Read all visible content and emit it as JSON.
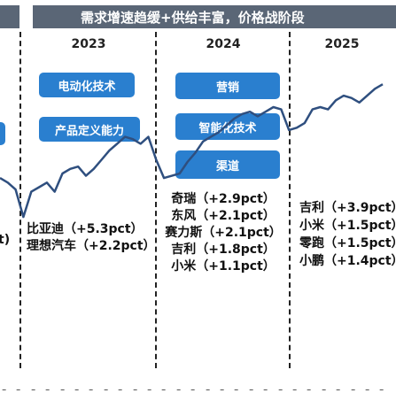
{
  "header": {
    "banner_title": "需求增速趋缓+供给丰富，价格战阶段"
  },
  "years": [
    "2023",
    "2024",
    "2025"
  ],
  "factors": {
    "y2023": [
      "电动化技术",
      "产品定义能力"
    ],
    "y2024": [
      "营销",
      "智能化技术",
      "渠道"
    ]
  },
  "annotations": {
    "left_partial": "t)",
    "y2023": [
      "比亚迪（+5.3pct）",
      "理想汽车（+2.2pct）"
    ],
    "y2024": [
      "奇瑞（+2.9pct）",
      "东风（+2.1pct）",
      "赛力斯（+2.1pct）",
      "吉利（+1.8pct）",
      "小米（+1.1pct）"
    ],
    "y2025": [
      "吉利（+3.9pct）",
      "小米（+1.5pct）",
      "零跑（+1.5pct）",
      "小鹏（+1.4pct）"
    ]
  },
  "colors": {
    "banner": "#5a6676",
    "pill": "#2a7fcf",
    "line": "#2f4f7f"
  },
  "chart_data": {
    "type": "line",
    "title": "",
    "xlabel": "",
    "ylabel": "",
    "x_ticks": 27,
    "series": [
      {
        "values": [
          62,
          60,
          57,
          45,
          56,
          58,
          60,
          56,
          64,
          66,
          67,
          63,
          66,
          70,
          74,
          77,
          80,
          79,
          77,
          80,
          70,
          62,
          63,
          64,
          69,
          73,
          78,
          80,
          82,
          85,
          88,
          90,
          91,
          89,
          91,
          93,
          92,
          83,
          84,
          86,
          92,
          93,
          92,
          96,
          98,
          97,
          95,
          98,
          101,
          103
        ]
      }
    ]
  }
}
